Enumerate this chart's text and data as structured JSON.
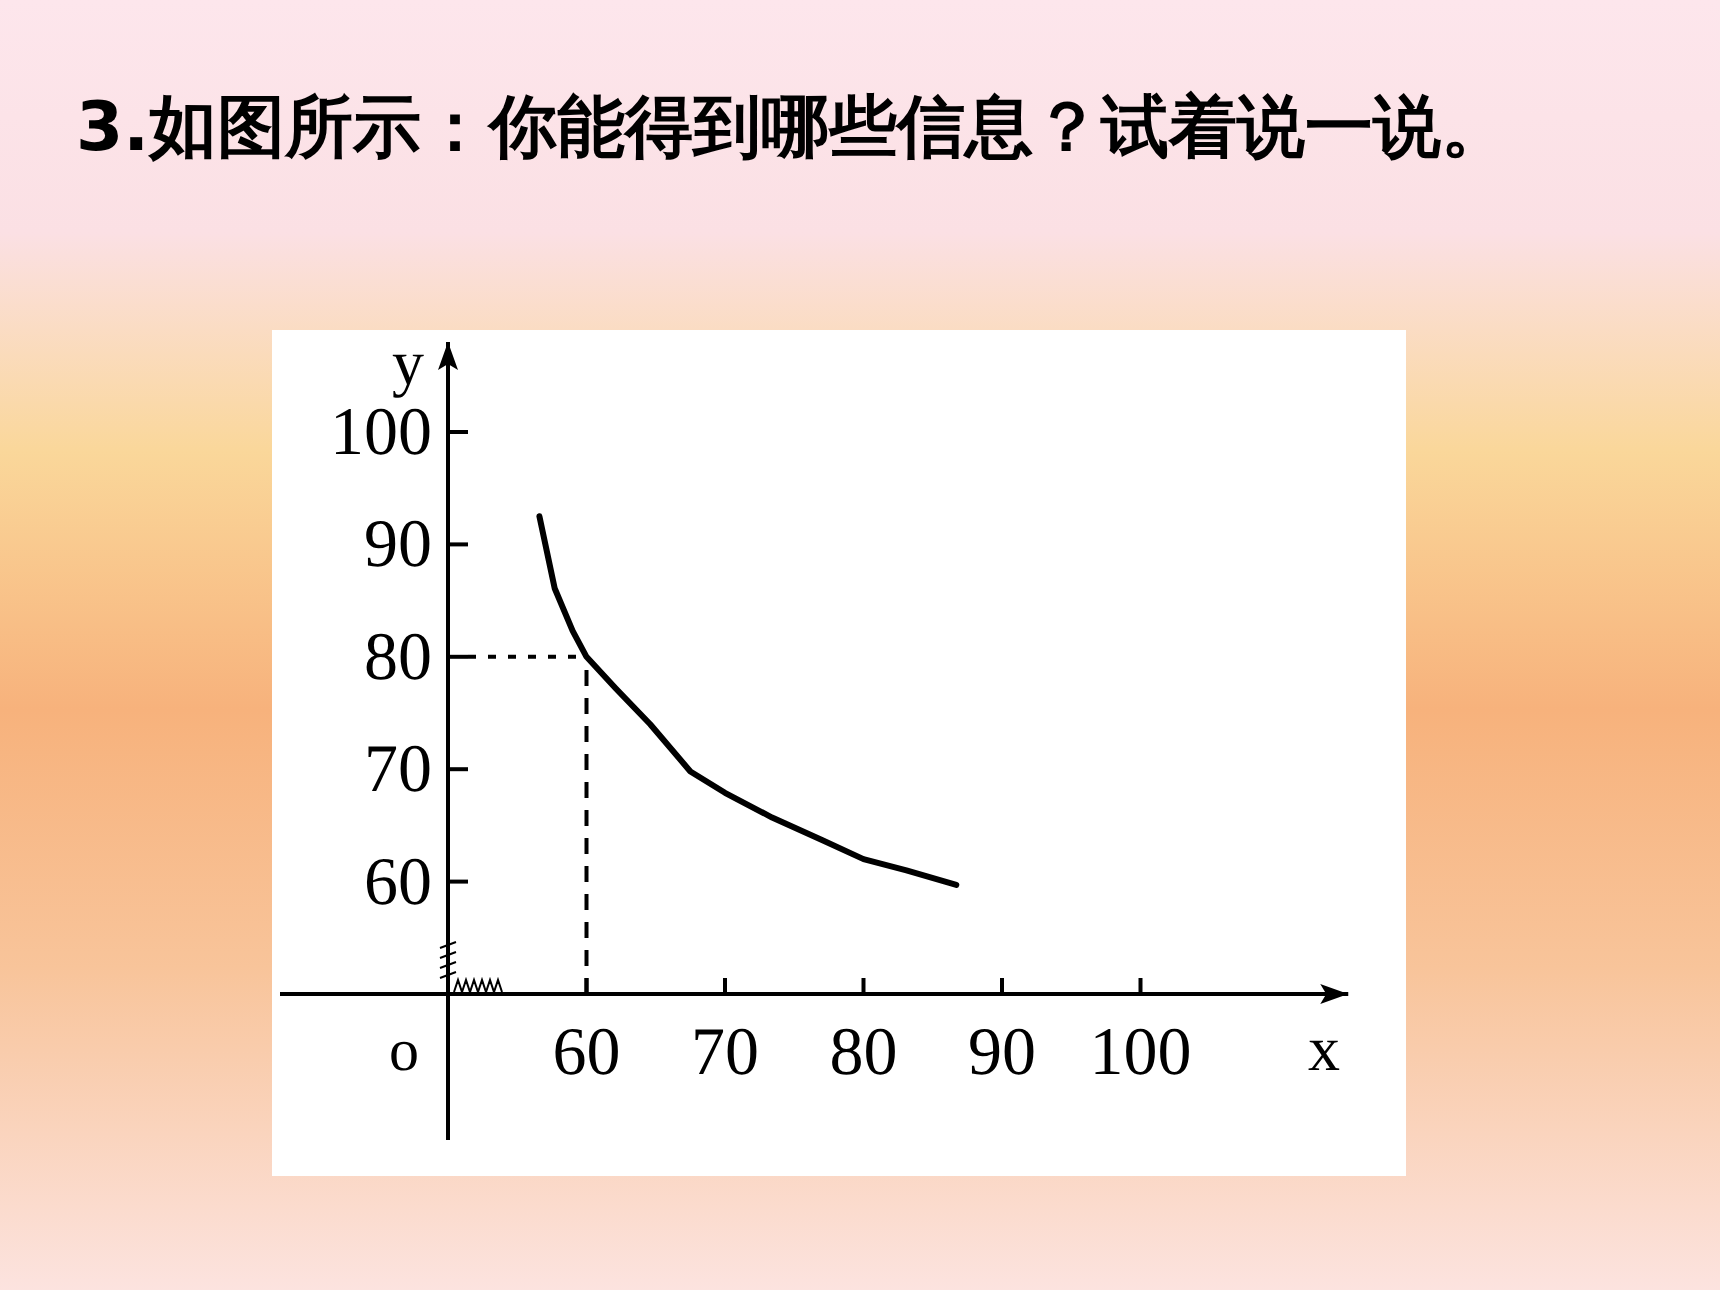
{
  "chart_data": {
    "type": "line",
    "title": "3.如图所示：你能得到哪些信息？试着说一说。",
    "xlabel": "x",
    "ylabel": "y",
    "annotations": [
      "o"
    ],
    "xlim": [
      50,
      115
    ],
    "ylim": [
      50,
      108
    ],
    "xticks": [
      60,
      70,
      80,
      90,
      100
    ],
    "yticks": [
      60,
      70,
      80,
      90,
      100
    ],
    "grid": false,
    "marker": "none",
    "line_style": "solid",
    "ref_lines": [
      {
        "axis": "x",
        "value": 60,
        "line_style": "dashed"
      },
      {
        "axis": "y",
        "value": 80,
        "line_style": "dotted"
      }
    ],
    "series": [
      {
        "color": "#000000",
        "x": [
          56.6,
          57.7,
          59,
          60,
          62.1,
          64.6,
          67.5,
          70,
          73.4,
          77,
          80,
          83.1,
          86.7
        ],
        "values": [
          92.5,
          86.1,
          82.3,
          80,
          77.2,
          74.0,
          69.8,
          67.9,
          65.7,
          63.7,
          62.0,
          61.0,
          59.7
        ]
      }
    ]
  }
}
